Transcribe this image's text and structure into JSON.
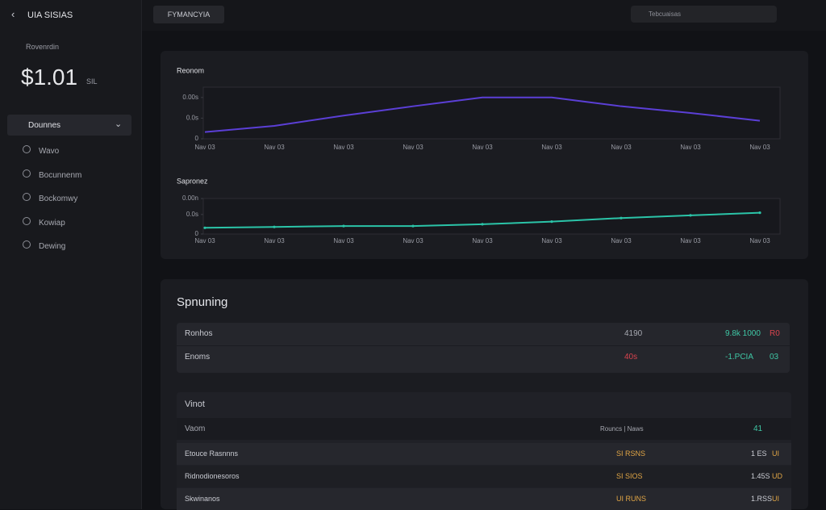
{
  "sidebar": {
    "brand": "UIA SISIAS",
    "account_label": "Rovenrdin",
    "balance": "$1.01",
    "balance_unit": "SIL",
    "section": "Dounnes",
    "menu": [
      "Wavo",
      "Bocunnenm",
      "Bockomwy",
      "Kowiap",
      "Dewing"
    ]
  },
  "topbar": {
    "tab": "FYMANCYIA",
    "search": "Tebcuaisas"
  },
  "chart_data": [
    {
      "type": "line",
      "title": "Reonom",
      "categories": [
        "Nav 03",
        "Nav 03",
        "Nav 03",
        "Nav 03",
        "Nav 03",
        "Nav 03",
        "Nav 03",
        "Nav 03",
        "Nav 03"
      ],
      "series": [
        {
          "name": "Reonom",
          "color": "#5b3fd6",
          "values": [
            13,
            25,
            45,
            63,
            80,
            80,
            63,
            50,
            35
          ]
        }
      ],
      "ylim": [
        0,
        100
      ],
      "yticks": [
        {
          "value": 0,
          "label": "0"
        },
        {
          "value": 40,
          "label": "0.0s"
        },
        {
          "value": 80,
          "label": "0.00s"
        }
      ]
    },
    {
      "type": "line",
      "title": "Sapronez",
      "categories": [
        "Nav 03",
        "Nav 03",
        "Nav 03",
        "Nav 03",
        "Nav 03",
        "Nav 03",
        "Nav 03",
        "Nav 03",
        "Nav 03"
      ],
      "series": [
        {
          "name": "Sapronez",
          "color": "#2bc4a8",
          "values": [
            17.5,
            20,
            22.5,
            22.5,
            27.5,
            35,
            45,
            52.5,
            60
          ]
        }
      ],
      "ylim": [
        0,
        100
      ],
      "yticks": [
        {
          "value": 0,
          "label": "0"
        },
        {
          "value": 55,
          "label": "0.0s"
        },
        {
          "value": 100,
          "label": "0.00n"
        }
      ]
    }
  ],
  "summary": {
    "title": "Spnuning",
    "rows": [
      [
        "Ronhos",
        "4190",
        "9.8k 1000",
        "R0"
      ],
      [
        "Enoms",
        "40s",
        "-1.PCIA",
        "03"
      ]
    ]
  },
  "table": {
    "title": "Vinot",
    "header": [
      "Vaom",
      "Rouncs | Naws",
      "41"
    ],
    "rows": [
      [
        "Etouce Rasnnns",
        "SI RSNS",
        "1 ES",
        "UI"
      ],
      [
        "Ridnodionesoros",
        "SI SIOS",
        "1.45S",
        "UD"
      ],
      [
        "Skwinanos",
        "UI RUNS",
        "1.RSS",
        "UI"
      ]
    ]
  }
}
